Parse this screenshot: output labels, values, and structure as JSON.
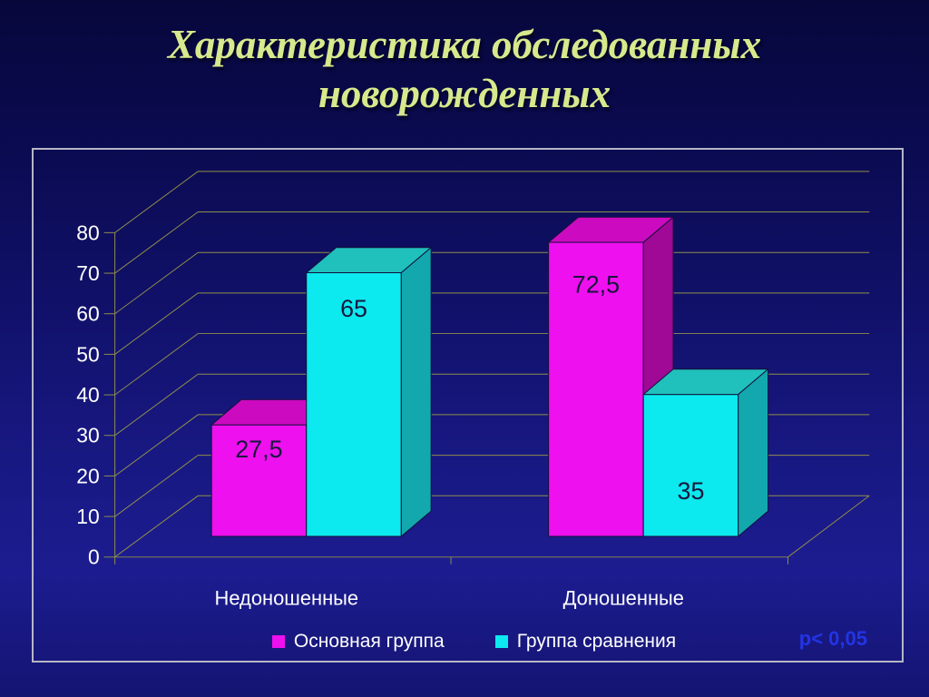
{
  "slide": {
    "title": "Характеристика обследованных новорожденных",
    "title_color": "#d7e98c",
    "p_value_note": "p< 0,05",
    "p_value_color": "#2334e4"
  },
  "chart_data": {
    "type": "bar",
    "style": "3d-clustered",
    "title": "",
    "xlabel": "",
    "ylabel": "",
    "categories": [
      "Недоношенные",
      "Доношенные"
    ],
    "series": [
      {
        "name": "Основная группа",
        "color": "#ee10ee",
        "color_top": "#cc0ac0",
        "color_side": "#a00896",
        "values": [
          27.5,
          72.5
        ],
        "labels": [
          "27,5",
          "72,5"
        ]
      },
      {
        "name": "Группа сравнения",
        "color": "#0ce9ef",
        "color_top": "#20c0bc",
        "color_side": "#12a8ae",
        "values": [
          65,
          35
        ],
        "labels": [
          "65",
          "35"
        ]
      }
    ],
    "ylim": [
      0,
      80
    ],
    "ytick_step": 10,
    "yticks": [
      0,
      10,
      20,
      30,
      40,
      50,
      60,
      70,
      80
    ],
    "grid": true,
    "legend_position": "bottom",
    "axis_text_color": "#ffffff",
    "value_label_color": "#17173d",
    "gridline_color": "#8f8f4a",
    "value_label_dy": [
      [
        36,
        56
      ],
      [
        49,
        116
      ]
    ]
  }
}
